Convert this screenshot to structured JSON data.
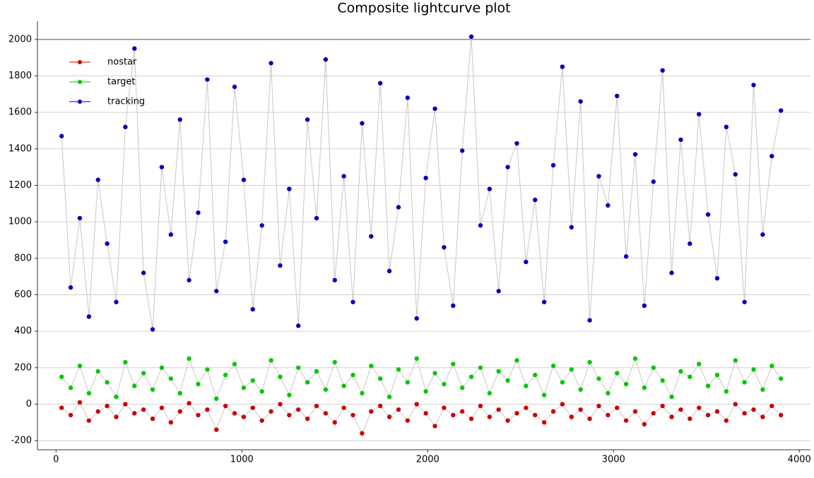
{
  "chart_data": {
    "type": "scatter",
    "title": "Composite lightcurve plot",
    "x": [
      30,
      79,
      128,
      177,
      226,
      275,
      324,
      373,
      422,
      471,
      520,
      569,
      618,
      667,
      716,
      765,
      814,
      863,
      912,
      961,
      1010,
      1059,
      1108,
      1157,
      1206,
      1255,
      1304,
      1353,
      1402,
      1451,
      1500,
      1549,
      1598,
      1647,
      1696,
      1745,
      1794,
      1843,
      1892,
      1941,
      1990,
      2039,
      2088,
      2137,
      2186,
      2235,
      2284,
      2333,
      2382,
      2431,
      2480,
      2529,
      2578,
      2627,
      2676,
      2725,
      2774,
      2823,
      2872,
      2921,
      2970,
      3019,
      3068,
      3117,
      3166,
      3215,
      3264,
      3313,
      3362,
      3411,
      3460,
      3509,
      3558,
      3607,
      3656,
      3705,
      3754,
      3803,
      3852,
      3901
    ],
    "series": [
      {
        "name": "nostar",
        "color": "#cc0000",
        "values": [
          -20,
          -60,
          10,
          -90,
          -40,
          -10,
          -70,
          0,
          -50,
          -30,
          -80,
          -20,
          -100,
          -40,
          5,
          -60,
          -30,
          -140,
          -10,
          -50,
          -70,
          -20,
          -90,
          -40,
          0,
          -60,
          -30,
          -80,
          -10,
          -50,
          -100,
          -20,
          -60,
          -160,
          -40,
          -10,
          -70,
          -30,
          -90,
          0,
          -50,
          -120,
          -20,
          -60,
          -40,
          -80,
          -10,
          -70,
          -30,
          -90,
          -50,
          -20,
          -60,
          -100,
          -40,
          0,
          -70,
          -30,
          -80,
          -10,
          -60,
          -20,
          -90,
          -40,
          -110,
          -50,
          -10,
          -70,
          -30,
          -80,
          -20,
          -60,
          -40,
          -90,
          0,
          -50,
          -30,
          -70,
          -10,
          -60
        ]
      },
      {
        "name": "target",
        "color": "#00c800",
        "values": [
          150,
          90,
          210,
          60,
          180,
          120,
          40,
          230,
          100,
          170,
          80,
          200,
          140,
          60,
          250,
          110,
          190,
          30,
          160,
          220,
          90,
          130,
          70,
          240,
          150,
          50,
          200,
          120,
          180,
          80,
          230,
          100,
          160,
          60,
          210,
          140,
          40,
          190,
          120,
          250,
          70,
          170,
          110,
          220,
          90,
          150,
          200,
          60,
          180,
          130,
          240,
          100,
          160,
          50,
          210,
          120,
          190,
          80,
          230,
          140,
          60,
          170,
          110,
          250,
          90,
          200,
          130,
          40,
          180,
          150,
          220,
          100,
          160,
          70,
          240,
          120,
          190,
          80,
          210,
          140
        ]
      },
      {
        "name": "tracking",
        "color": "#0000bb",
        "values": [
          1470,
          640,
          1020,
          480,
          1230,
          880,
          560,
          1520,
          1950,
          720,
          410,
          1300,
          930,
          1560,
          680,
          1050,
          1780,
          620,
          890,
          1740,
          1230,
          520,
          980,
          1870,
          760,
          1180,
          430,
          1560,
          1020,
          1890,
          680,
          1250,
          560,
          1540,
          920,
          1760,
          730,
          1080,
          1680,
          470,
          1240,
          1620,
          860,
          540,
          1390,
          2015,
          980,
          1180,
          620,
          1300,
          1430,
          780,
          1120,
          560,
          1310,
          1850,
          970,
          1660,
          460,
          1250,
          1090,
          1690,
          810,
          1370,
          540,
          1220,
          1830,
          720,
          1450,
          880,
          1590,
          1040,
          690,
          1520,
          1260,
          560,
          1750,
          930,
          1360,
          1610
        ]
      }
    ],
    "line_color": "#c8c8c8",
    "xlim": [
      -100,
      4060
    ],
    "ylim": [
      -250,
      2100
    ],
    "xticks": [
      0,
      1000,
      2000,
      3000,
      4000
    ],
    "yticks": [
      -200,
      0,
      200,
      400,
      600,
      800,
      1000,
      1200,
      1400,
      1600,
      1800,
      2000
    ],
    "grid": true,
    "legend": "upper left"
  }
}
